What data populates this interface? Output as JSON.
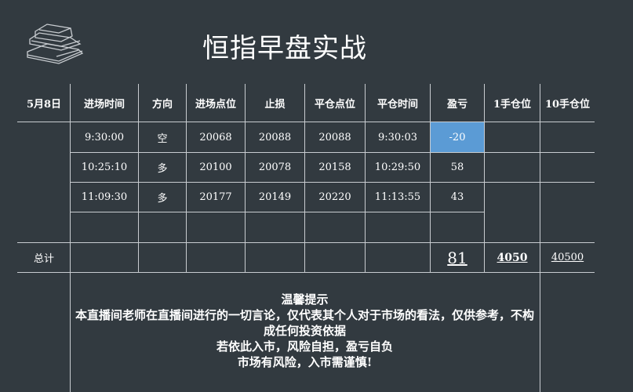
{
  "title": "恒指早盘实战",
  "icons": {
    "logo": "books-icon"
  },
  "colors": {
    "background": "#323a40",
    "highlight": "#5b9bd5"
  },
  "table": {
    "date": "5月8日",
    "headers": [
      "进场时间",
      "方向",
      "进场点位",
      "止损",
      "平仓点位",
      "平仓时间",
      "盈亏",
      "1手仓位",
      "10手仓位"
    ],
    "rows": [
      [
        "9:30:00",
        "空",
        "20068",
        "20088",
        "20088",
        "9:30:03",
        "-20"
      ],
      [
        "10:25:10",
        "多",
        "20100",
        "20078",
        "20158",
        "10:29:50",
        "58"
      ],
      [
        "11:09:30",
        "多",
        "20177",
        "20149",
        "20220",
        "11:13:55",
        "43"
      ]
    ],
    "total_label": "总计",
    "total_pnl": "81",
    "total_1lot": "4050",
    "total_10lot": "40500"
  },
  "notice": {
    "title": "温馨提示",
    "lines": [
      "本直播间老师在直播间进行的一切言论，仅代表其个人对于市场的看法，仅供参考，不构成任何投资依据",
      "若依此入市，风险自担，盈亏自负",
      "市场有风险，入市需谨慎!"
    ]
  }
}
